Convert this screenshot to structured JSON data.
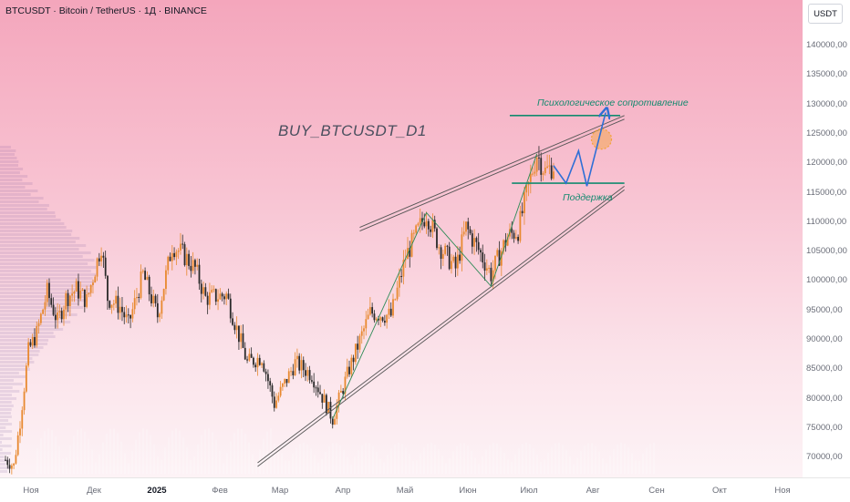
{
  "header": {
    "symbol_line": "BTCUSDT · Bitcoin / TetherUS · 1Д · BINANCE",
    "currency": "USDT"
  },
  "price_axis": {
    "labels": [
      "140000,00",
      "135000,00",
      "130000,00",
      "125000,00",
      "120000,00",
      "115000,00",
      "110000,00",
      "105000,00",
      "100000,00",
      "95000,00",
      "90000,00",
      "85000,00",
      "80000,00",
      "75000,00",
      "70000,00"
    ]
  },
  "time_axis": {
    "labels": [
      "Ноя",
      "Дек",
      "2025",
      "Фев",
      "Мар",
      "Апр",
      "Май",
      "Июн",
      "Июл",
      "Авг",
      "Сен",
      "Окт",
      "Ноя"
    ]
  },
  "annotations": {
    "idea_title": "BUY_BTCUSDT_D1",
    "resistance_label": "Психологическое сопротивление",
    "support_label": "Поддержка"
  },
  "colors": {
    "candle_up": "#e8892f",
    "candle_down": "#2a2a2a",
    "level_line": "#138a6f",
    "projection": "#2f6fd6",
    "target_circle": "#f2a33a",
    "channel": "#555555"
  },
  "chart_data": {
    "type": "candlestick",
    "symbol": "BTCUSDT",
    "timeframe": "1Д",
    "ylim": [
      67000,
      145000
    ],
    "x_range": [
      "2024-11-01",
      "2025-11-15"
    ],
    "close_path": [
      [
        "2024-11-01",
        69500
      ],
      [
        "2024-11-05",
        68500
      ],
      [
        "2024-11-08",
        76000
      ],
      [
        "2024-11-12",
        88000
      ],
      [
        "2024-11-16",
        91000
      ],
      [
        "2024-11-21",
        98000
      ],
      [
        "2024-11-26",
        93000
      ],
      [
        "2024-11-30",
        97000
      ],
      [
        "2024-12-05",
        98500
      ],
      [
        "2024-12-10",
        96500
      ],
      [
        "2024-12-17",
        106000
      ],
      [
        "2024-12-20",
        97000
      ],
      [
        "2024-12-26",
        95500
      ],
      [
        "2024-12-30",
        92500
      ],
      [
        "2025-01-06",
        101000
      ],
      [
        "2025-01-13",
        94000
      ],
      [
        "2025-01-20",
        106000
      ],
      [
        "2025-01-25",
        104500
      ],
      [
        "2025-01-31",
        102000
      ],
      [
        "2025-02-05",
        97000
      ],
      [
        "2025-02-15",
        97500
      ],
      [
        "2025-02-25",
        86000
      ],
      [
        "2025-03-04",
        87000
      ],
      [
        "2025-03-10",
        79000
      ],
      [
        "2025-03-20",
        86000
      ],
      [
        "2025-03-28",
        84000
      ],
      [
        "2025-04-07",
        76500
      ],
      [
        "2025-04-15",
        85000
      ],
      [
        "2025-04-25",
        94500
      ],
      [
        "2025-05-05",
        94000
      ],
      [
        "2025-05-12",
        104000
      ],
      [
        "2025-05-22",
        111500
      ],
      [
        "2025-05-28",
        106000
      ],
      [
        "2025-06-05",
        102000
      ],
      [
        "2025-06-10",
        109000
      ],
      [
        "2025-06-17",
        104500
      ],
      [
        "2025-06-22",
        101000
      ],
      [
        "2025-06-30",
        107500
      ],
      [
        "2025-07-05",
        108500
      ],
      [
        "2025-07-10",
        116000
      ],
      [
        "2025-07-14",
        121500
      ],
      [
        "2025-07-18",
        118500
      ],
      [
        "2025-07-22",
        119500
      ]
    ],
    "channel": {
      "upper": [
        [
          "2025-04-20",
          109000
        ],
        [
          "2025-08-25",
          128000
        ]
      ],
      "lower": [
        [
          "2025-03-02",
          69000
        ],
        [
          "2025-08-25",
          116000
        ]
      ]
    },
    "zigzag": [
      [
        "2025-04-07",
        76500
      ],
      [
        "2025-05-22",
        111500
      ],
      [
        "2025-06-22",
        99000
      ],
      [
        "2025-07-14",
        121500
      ]
    ],
    "levels": {
      "resistance": 128000,
      "support": 116500
    },
    "projection": [
      [
        "2025-07-22",
        119500
      ],
      [
        "2025-07-28",
        116500
      ],
      [
        "2025-08-03",
        122000
      ],
      [
        "2025-08-07",
        116000
      ],
      [
        "2025-08-16",
        128500
      ]
    ],
    "target": {
      "date": "2025-08-14",
      "price": 124000
    }
  }
}
